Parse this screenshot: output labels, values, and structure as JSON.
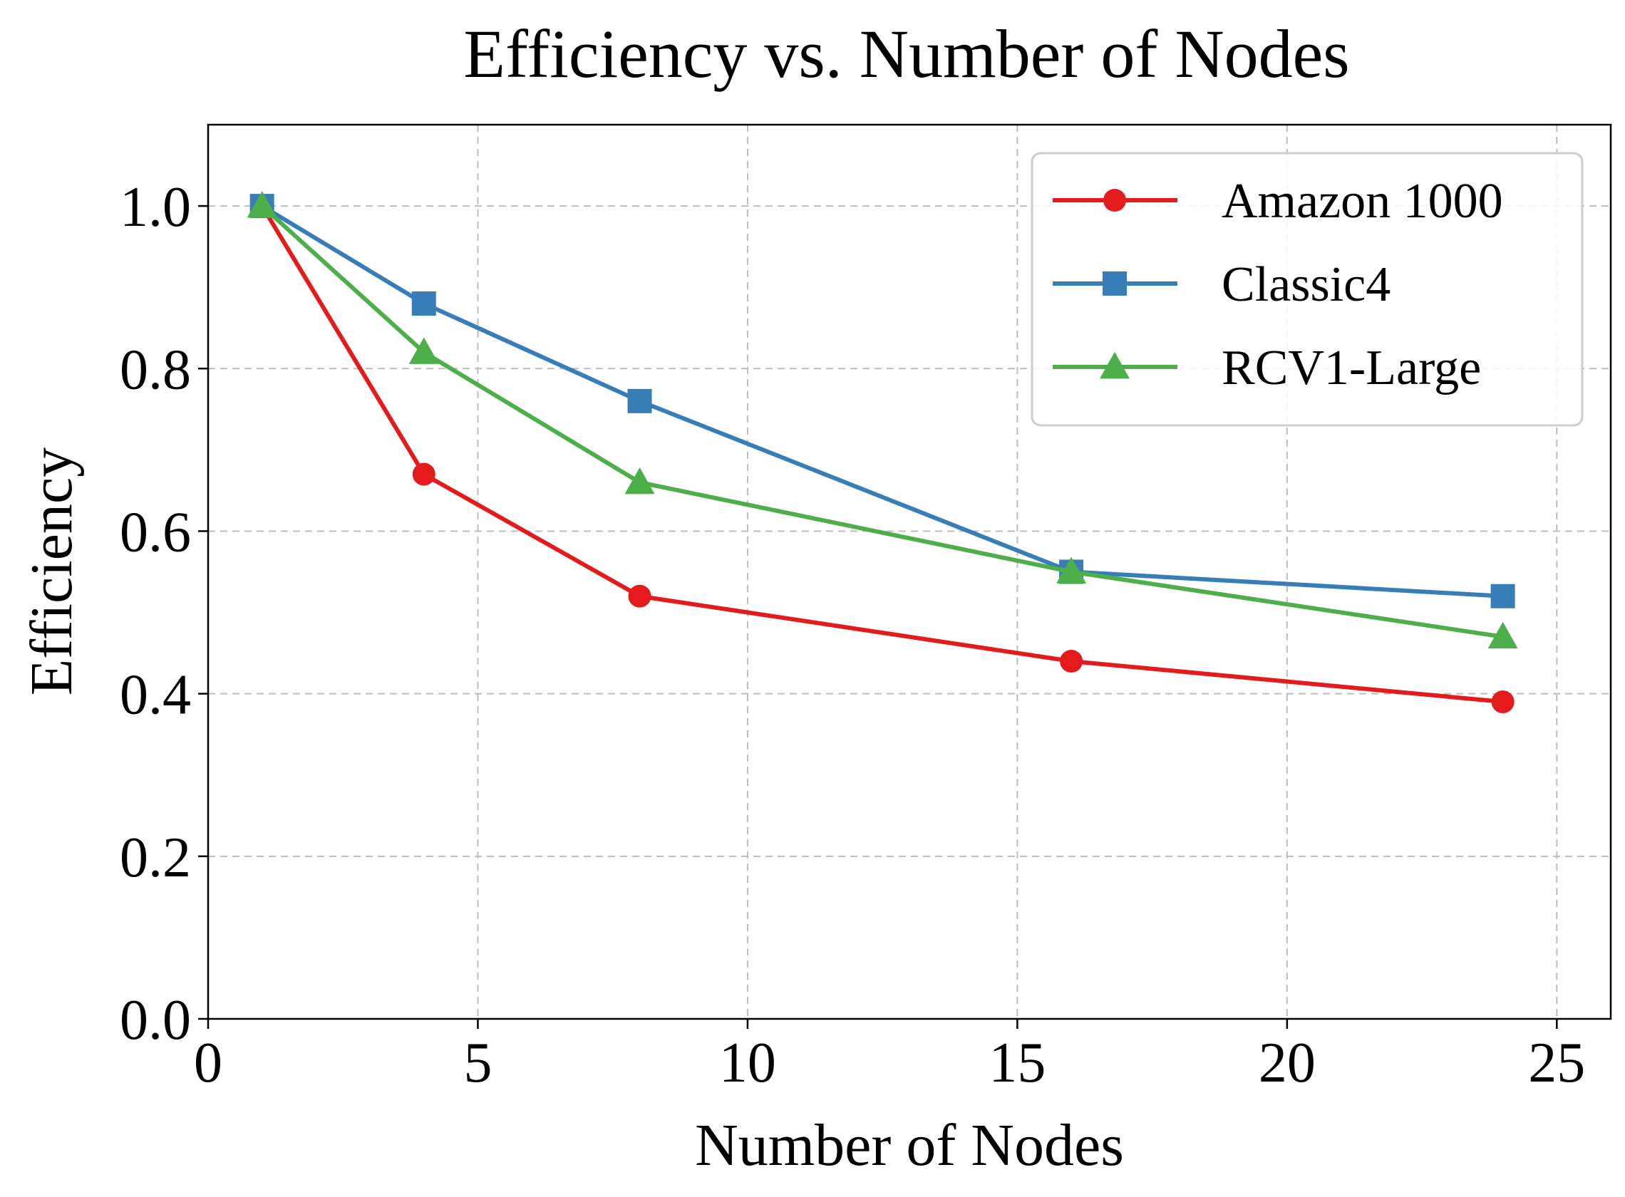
{
  "chart_data": {
    "type": "line",
    "title": "Efficiency vs. Number of Nodes",
    "xlabel": "Number of Nodes",
    "ylabel": "Efficiency",
    "xlim": [
      0,
      26
    ],
    "ylim": [
      0,
      1.1
    ],
    "xticks": [
      0,
      5,
      10,
      15,
      20,
      25
    ],
    "yticks": [
      0.0,
      0.2,
      0.4,
      0.6,
      0.8,
      1.0
    ],
    "xtick_labels": [
      "0",
      "5",
      "10",
      "15",
      "20",
      "25"
    ],
    "ytick_labels": [
      "0.0",
      "0.2",
      "0.4",
      "0.6",
      "0.8",
      "1.0"
    ],
    "grid": true,
    "legend_position": "top-right",
    "x": [
      1,
      4,
      8,
      16,
      24
    ],
    "series": [
      {
        "name": "Amazon 1000",
        "color": "#e41a1c",
        "marker": "circle",
        "values": [
          1.0,
          0.67,
          0.52,
          0.44,
          0.39
        ]
      },
      {
        "name": "Classic4",
        "color": "#377eb8",
        "marker": "square",
        "values": [
          1.0,
          0.88,
          0.76,
          0.55,
          0.52
        ]
      },
      {
        "name": "RCV1-Large",
        "color": "#4daf4a",
        "marker": "triangle",
        "values": [
          1.0,
          0.82,
          0.66,
          0.55,
          0.47
        ]
      }
    ]
  }
}
